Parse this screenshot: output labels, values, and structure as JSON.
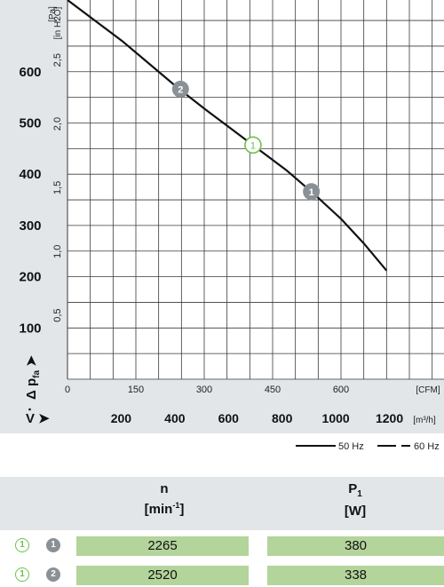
{
  "chart_data": {
    "type": "line",
    "x_cfm_ticks": [
      "0",
      "150",
      "300",
      "450",
      "600"
    ],
    "x_cfm_unit": "[CFM]",
    "x_m3h_ticks": [
      "200",
      "400",
      "600",
      "800",
      "1000",
      "1200"
    ],
    "x_m3h_unit": "[m³/h]",
    "x_label": "V̇",
    "y_pa_ticks": [
      "100",
      "200",
      "300",
      "400",
      "500",
      "600"
    ],
    "y_pa_unit": "[Pa]",
    "y_inh2o_ticks": [
      "0,5",
      "1,0",
      "1,5",
      "2,0",
      "2,5"
    ],
    "y_inh2o_unit": "[in H2O]",
    "y_label": "Δ pfa",
    "xlim_cfm": [
      0,
      800
    ],
    "ylim_pa": [
      0,
      740
    ],
    "grid": true,
    "series": [
      {
        "name": "50 Hz",
        "style": "solid",
        "x_cfm": [
          0,
          60,
          120,
          180,
          240,
          300,
          360,
          420,
          480,
          540,
          600,
          650,
          700
        ],
        "y_pa": [
          740,
          700,
          660,
          615,
          570,
          528,
          488,
          448,
          408,
          362,
          313,
          265,
          212
        ]
      }
    ],
    "operating_points": [
      {
        "label": "2",
        "style": "filled",
        "x_cfm": 248,
        "y_pa": 566
      },
      {
        "label": "1",
        "style": "outline",
        "x_cfm": 407,
        "y_pa": 457
      },
      {
        "label": "1",
        "style": "filled",
        "x_cfm": 535,
        "y_pa": 366
      }
    ]
  },
  "legend": [
    {
      "label": "50 Hz",
      "style": "solid"
    },
    {
      "label": "60 Hz",
      "style": "dashed"
    }
  ],
  "table": {
    "col_n_title": "n",
    "col_n_unit": "[min-1]",
    "col_p_title": "P1",
    "col_p_unit": "[W]",
    "rows": [
      {
        "badge_a": "1",
        "badge_b": "1",
        "n": "2265",
        "p": "380"
      },
      {
        "badge_a": "1",
        "badge_b": "2",
        "n": "2520",
        "p": "338"
      }
    ]
  },
  "colors": {
    "panel_bg": "#e2e6e9",
    "grid": "#3a3a3a",
    "curve": "#111111",
    "green": "#6cc24a",
    "cell_green": "#b3d49b",
    "badge_grey": "#8a9196"
  }
}
